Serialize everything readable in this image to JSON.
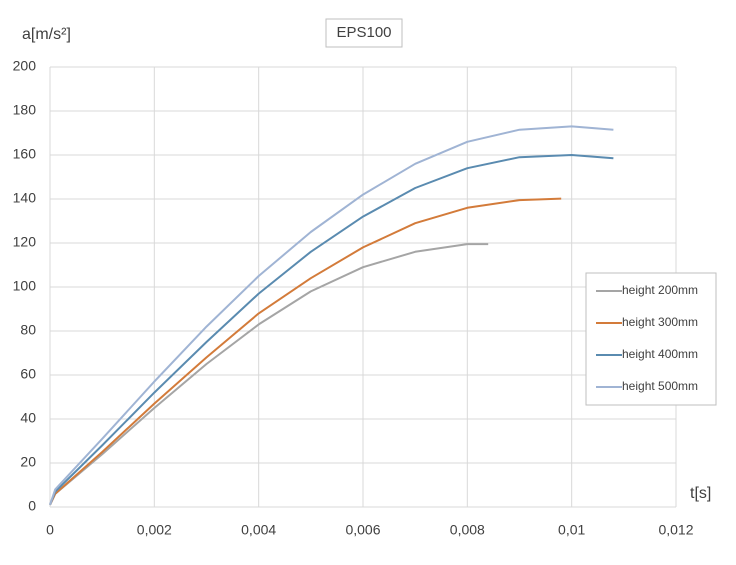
{
  "chart_data": {
    "type": "line",
    "title": "EPS100",
    "y_label": "a[m/s²]",
    "x_label": "t[s]",
    "xlim": [
      0,
      0.012
    ],
    "xticks": [
      0,
      {
        "value": 0.002,
        "label": "0,002"
      },
      {
        "value": 0.004,
        "label": "0,004"
      },
      {
        "value": 0.006,
        "label": "0,006"
      },
      {
        "value": 0.008,
        "label": "0,008"
      },
      {
        "value": 0.01,
        "label": "0,01"
      },
      {
        "value": 0.012,
        "label": "0,012"
      }
    ],
    "ylim": [
      0,
      200
    ],
    "yticks": [
      0,
      20,
      40,
      60,
      80,
      100,
      120,
      140,
      160,
      180,
      200
    ],
    "grid": true,
    "legend": "right",
    "series": [
      {
        "name": "height 200mm",
        "color": "#a5a5a5",
        "x": [
          0,
          0.0001,
          0.001,
          0.002,
          0.003,
          0.004,
          0.005,
          0.006,
          0.007,
          0.008,
          0.0084
        ],
        "values": [
          1,
          6,
          24,
          45,
          65,
          83,
          98,
          109,
          116,
          119.5,
          119.5
        ]
      },
      {
        "name": "height 300mm",
        "color": "#d37b3a",
        "x": [
          0,
          0.0001,
          0.001,
          0.002,
          0.003,
          0.004,
          0.005,
          0.006,
          0.007,
          0.008,
          0.009,
          0.0098
        ],
        "values": [
          1,
          6,
          25,
          47,
          68,
          88,
          104,
          118,
          129,
          136,
          139.5,
          140.2
        ]
      },
      {
        "name": "height 400mm",
        "color": "#5a8bb0",
        "x": [
          0,
          0.0001,
          0.001,
          0.002,
          0.003,
          0.004,
          0.005,
          0.006,
          0.007,
          0.008,
          0.009,
          0.01,
          0.0108
        ],
        "values": [
          1,
          7,
          28,
          52,
          75,
          97,
          116,
          132,
          145,
          154,
          159,
          160,
          158.5
        ]
      },
      {
        "name": "height 500mm",
        "color": "#a0b4d4",
        "x": [
          0,
          0.0001,
          0.001,
          0.002,
          0.003,
          0.004,
          0.005,
          0.006,
          0.007,
          0.008,
          0.009,
          0.01,
          0.0108
        ],
        "values": [
          1,
          8,
          31,
          57,
          82,
          105,
          125,
          142,
          156,
          166,
          171.5,
          173,
          171.5
        ]
      }
    ]
  }
}
